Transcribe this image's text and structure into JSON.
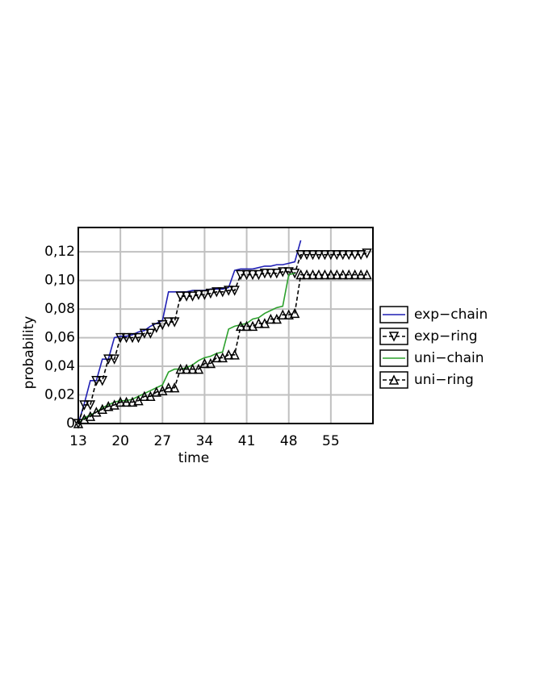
{
  "chart_data": {
    "type": "line",
    "x_label": "time",
    "y_label": "probability",
    "x": [
      13,
      14,
      15,
      16,
      17,
      18,
      19,
      20,
      21,
      22,
      23,
      24,
      25,
      26,
      27,
      28,
      29,
      30,
      31,
      32,
      33,
      34,
      35,
      36,
      37,
      38,
      39,
      40,
      41,
      42,
      43,
      44,
      45,
      46,
      47,
      48,
      49,
      50,
      51,
      52,
      53,
      54,
      55,
      56,
      57,
      58,
      59,
      60,
      61
    ],
    "series": [
      {
        "name": "exp−chain",
        "color": "#1f1fb4",
        "line_style": "solid",
        "marker": "none",
        "values": [
          0,
          0.014,
          0.03,
          0.03,
          0.045,
          0.045,
          0.06,
          0.061,
          0.061,
          0.062,
          0.064,
          0.065,
          0.068,
          0.07,
          0.072,
          0.092,
          0.092,
          0.092,
          0.092,
          0.093,
          0.093,
          0.093,
          0.094,
          0.094,
          0.094,
          0.095,
          0.107,
          0.108,
          0.108,
          0.108,
          0.109,
          0.11,
          0.11,
          0.111,
          0.111,
          0.112,
          0.113,
          0.128,
          null,
          null,
          null,
          null,
          null,
          null,
          null,
          null,
          null,
          null,
          null
        ]
      },
      {
        "name": "exp−ring",
        "color": "#000000",
        "line_style": "dashed",
        "marker": "triangle-down",
        "values": [
          0,
          0.013,
          0.013,
          0.03,
          0.03,
          0.045,
          0.045,
          0.06,
          0.06,
          0.06,
          0.06,
          0.063,
          0.063,
          0.067,
          0.069,
          0.071,
          0.071,
          0.089,
          0.089,
          0.089,
          0.09,
          0.09,
          0.091,
          0.092,
          0.092,
          0.093,
          0.093,
          0.104,
          0.104,
          0.104,
          0.104,
          0.105,
          0.105,
          0.105,
          0.106,
          0.106,
          0.105,
          0.118,
          0.118,
          0.118,
          0.118,
          0.118,
          0.118,
          0.118,
          0.118,
          0.118,
          0.118,
          0.118,
          0.119
        ]
      },
      {
        "name": "uni−chain",
        "color": "#2ca02c",
        "line_style": "solid",
        "marker": "none",
        "values": [
          0,
          0.004,
          0.006,
          0.008,
          0.011,
          0.013,
          0.015,
          0.016,
          0.016,
          0.017,
          0.019,
          0.021,
          0.023,
          0.025,
          0.027,
          0.036,
          0.038,
          0.038,
          0.039,
          0.041,
          0.044,
          0.046,
          0.047,
          0.049,
          0.05,
          0.066,
          0.068,
          0.069,
          0.07,
          0.073,
          0.074,
          0.077,
          0.079,
          0.081,
          0.082,
          0.104,
          0.105,
          null,
          null,
          null,
          null,
          null,
          null,
          null,
          null,
          null,
          null,
          null,
          null
        ]
      },
      {
        "name": "uni−ring",
        "color": "#000000",
        "line_style": "dashed",
        "marker": "triangle-up",
        "values": [
          0,
          0.003,
          0.005,
          0.008,
          0.01,
          0.012,
          0.013,
          0.015,
          0.015,
          0.015,
          0.016,
          0.019,
          0.019,
          0.022,
          0.023,
          0.025,
          0.025,
          0.038,
          0.038,
          0.038,
          0.038,
          0.042,
          0.042,
          0.046,
          0.046,
          0.048,
          0.048,
          0.068,
          0.068,
          0.068,
          0.07,
          0.07,
          0.073,
          0.073,
          0.076,
          0.076,
          0.077,
          0.104,
          0.104,
          0.104,
          0.104,
          0.104,
          0.104,
          0.104,
          0.104,
          0.104,
          0.104,
          0.104,
          0.104
        ]
      }
    ],
    "xlim": [
      13,
      62
    ],
    "ylim": [
      0,
      0.137
    ],
    "xticks": [
      13,
      20,
      27,
      34,
      41,
      48,
      55
    ],
    "yticks": [
      0,
      {
        "value": 0.02,
        "label": "0,02"
      },
      {
        "value": 0.04,
        "label": "0,04"
      },
      {
        "value": 0.06,
        "label": "0,06"
      },
      {
        "value": 0.08,
        "label": "0,08"
      },
      {
        "value": 0.1,
        "label": "0,10"
      },
      {
        "value": 0.12,
        "label": "0,12"
      }
    ],
    "grid": true,
    "legend": "right"
  }
}
